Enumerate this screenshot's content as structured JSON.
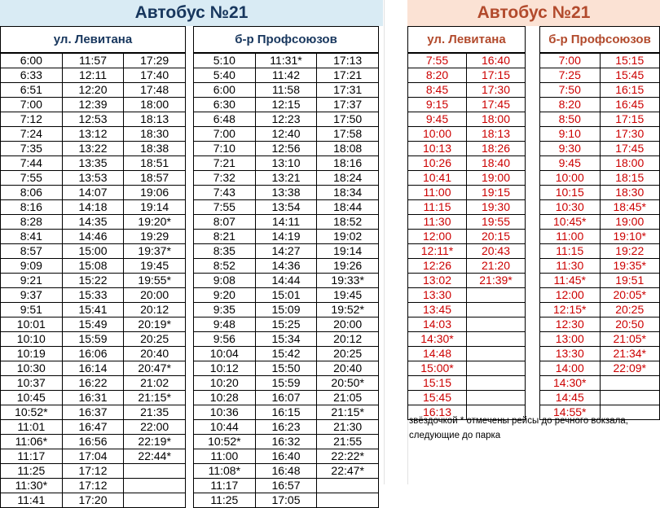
{
  "left": {
    "title": "Автобус №21",
    "levitana": {
      "header": "ул. Левитана",
      "rows": [
        [
          "6:00",
          "11:57",
          "17:29"
        ],
        [
          "6:33",
          "12:11",
          "17:40"
        ],
        [
          "6:51",
          "12:20",
          "17:48"
        ],
        [
          "7:00",
          "12:39",
          "18:00"
        ],
        [
          "7:12",
          "12:53",
          "18:13"
        ],
        [
          "7:24",
          "13:12",
          "18:30"
        ],
        [
          "7:35",
          "13:22",
          "18:38"
        ],
        [
          "7:44",
          "13:35",
          "18:51"
        ],
        [
          "7:55",
          "13:53",
          "18:57"
        ],
        [
          "8:06",
          "14:07",
          "19:06"
        ],
        [
          "8:16",
          "14:18",
          "19:14"
        ],
        [
          "8:28",
          "14:35",
          "19:20*"
        ],
        [
          "8:41",
          "14:46",
          "19:29"
        ],
        [
          "8:57",
          "15:00",
          "19:37*"
        ],
        [
          "9:09",
          "15:08",
          "19:45"
        ],
        [
          "9:21",
          "15:22",
          "19:55*"
        ],
        [
          "9:37",
          "15:33",
          "20:00"
        ],
        [
          "9:51",
          "15:41",
          "20:12"
        ],
        [
          "10:01",
          "15:49",
          "20:19*"
        ],
        [
          "10:10",
          "15:59",
          "20:25"
        ],
        [
          "10:19",
          "16:06",
          "20:40"
        ],
        [
          "10:30",
          "16:14",
          "20:47*"
        ],
        [
          "10:37",
          "16:22",
          "21:02"
        ],
        [
          "10:45",
          "16:31",
          "21:15*"
        ],
        [
          "10:52*",
          "16:37",
          "21:35"
        ],
        [
          "11:01",
          "16:47",
          "22:00"
        ],
        [
          "11:06*",
          "16:56",
          "22:19*"
        ],
        [
          "11:17",
          "17:04",
          "22:44*"
        ],
        [
          "11:25",
          "17:12",
          ""
        ],
        [
          "11:30*",
          "17:12",
          ""
        ],
        [
          "11:41",
          "17:20",
          ""
        ]
      ]
    },
    "profsoyuzov": {
      "header": "б-р Профсоюзов",
      "rows": [
        [
          "5:10",
          "11:31*",
          "17:13"
        ],
        [
          "5:40",
          "11:42",
          "17:21"
        ],
        [
          "6:00",
          "11:58",
          "17:31"
        ],
        [
          "6:30",
          "12:15",
          "17:37"
        ],
        [
          "6:48",
          "12:23",
          "17:50"
        ],
        [
          "7:00",
          "12:40",
          "17:58"
        ],
        [
          "7:10",
          "12:56",
          "18:08"
        ],
        [
          "7:21",
          "13:10",
          "18:16"
        ],
        [
          "7:32",
          "13:21",
          "18:24"
        ],
        [
          "7:43",
          "13:38",
          "18:34"
        ],
        [
          "7:55",
          "13:54",
          "18:44"
        ],
        [
          "8:07",
          "14:11",
          "18:52"
        ],
        [
          "8:21",
          "14:19",
          "19:02"
        ],
        [
          "8:35",
          "14:27",
          "19:14"
        ],
        [
          "8:52",
          "14:36",
          "19:26"
        ],
        [
          "9:08",
          "14:44",
          "19:33*"
        ],
        [
          "9:20",
          "15:01",
          "19:45"
        ],
        [
          "9:35",
          "15:09",
          "19:52*"
        ],
        [
          "9:48",
          "15:25",
          "20:00"
        ],
        [
          "9:56",
          "15:34",
          "20:12"
        ],
        [
          "10:04",
          "15:42",
          "20:25"
        ],
        [
          "10:12",
          "15:50",
          "20:40"
        ],
        [
          "10:20",
          "15:59",
          "20:50*"
        ],
        [
          "10:28",
          "16:07",
          "21:05"
        ],
        [
          "10:36",
          "16:15",
          "21:15*"
        ],
        [
          "10:44",
          "16:23",
          "21:30"
        ],
        [
          "10:52*",
          "16:32",
          "21:55"
        ],
        [
          "11:00",
          "16:40",
          "22:22*"
        ],
        [
          "11:08*",
          "16:48",
          "22:47*"
        ],
        [
          "11:17",
          "16:57",
          ""
        ],
        [
          "11:25",
          "17:05",
          ""
        ]
      ]
    }
  },
  "right": {
    "title": "Автобус №21",
    "levitana": {
      "header": "ул. Левитана",
      "rows": [
        [
          "7:55",
          "16:40"
        ],
        [
          "8:20",
          "17:15"
        ],
        [
          "8:45",
          "17:30"
        ],
        [
          "9:15",
          "17:45"
        ],
        [
          "9:45",
          "18:00"
        ],
        [
          "10:00",
          "18:13"
        ],
        [
          "10:13",
          "18:26"
        ],
        [
          "10:26",
          "18:40"
        ],
        [
          "10:41",
          "19:00"
        ],
        [
          "11:00",
          "19:15"
        ],
        [
          "11:15",
          "19:30"
        ],
        [
          "11:30",
          "19:55"
        ],
        [
          "12:00",
          "20:15"
        ],
        [
          "12:11*",
          "20:43"
        ],
        [
          "12:26",
          "21:20"
        ],
        [
          "13:02",
          "21:39*"
        ],
        [
          "13:30",
          ""
        ],
        [
          "13:45",
          ""
        ],
        [
          "14:03",
          ""
        ],
        [
          "14:30*",
          ""
        ],
        [
          "14:48",
          ""
        ],
        [
          "15:00*",
          ""
        ],
        [
          "15:15",
          ""
        ],
        [
          "15:45",
          ""
        ],
        [
          "16:13",
          ""
        ]
      ]
    },
    "profsoyuzov": {
      "header": "б-р Профсоюзов",
      "rows": [
        [
          "7:00",
          "15:15"
        ],
        [
          "7:25",
          "15:45"
        ],
        [
          "7:50",
          "16:15"
        ],
        [
          "8:20",
          "16:45"
        ],
        [
          "8:50",
          "17:15"
        ],
        [
          "9:10",
          "17:30"
        ],
        [
          "9:30",
          "17:45"
        ],
        [
          "9:45",
          "18:00"
        ],
        [
          "10:00",
          "18:15"
        ],
        [
          "10:15",
          "18:30"
        ],
        [
          "10:30",
          "18:45*"
        ],
        [
          "10:45*",
          "19:00"
        ],
        [
          "11:00",
          "19:10*"
        ],
        [
          "11:15",
          "19:22"
        ],
        [
          "11:30",
          "19:35*"
        ],
        [
          "11:45*",
          "19:51"
        ],
        [
          "12:00",
          "20:05*"
        ],
        [
          "12:15*",
          "20:25"
        ],
        [
          "12:30",
          "20:50"
        ],
        [
          "13:00",
          "21:05*"
        ],
        [
          "13:30",
          "21:34*"
        ],
        [
          "14:00",
          "22:09*"
        ],
        [
          "14:30*",
          ""
        ],
        [
          "14:45",
          ""
        ],
        [
          "14:55*",
          ""
        ]
      ]
    },
    "note_line1": "звёздочкой * отмечены рейсы до речного вокзала,",
    "note_line2": "следующие до парка"
  }
}
